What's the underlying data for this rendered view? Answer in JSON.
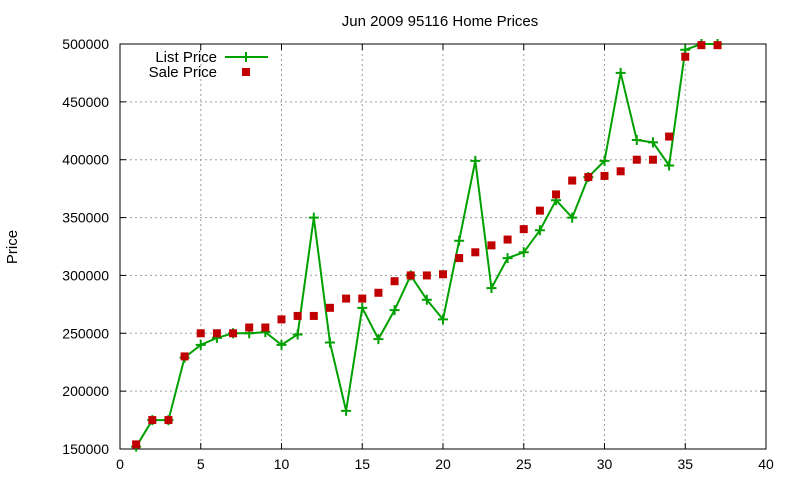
{
  "chart_data": {
    "type": "line",
    "title": "Jun 2009 95116 Home Prices",
    "xlabel": "",
    "ylabel": "Price",
    "xlim": [
      0,
      40
    ],
    "ylim": [
      150000,
      500000
    ],
    "xticks": [
      0,
      5,
      10,
      15,
      20,
      25,
      30,
      35,
      40
    ],
    "yticks": [
      150000,
      200000,
      250000,
      300000,
      350000,
      400000,
      450000,
      500000
    ],
    "grid": true,
    "legend_position": "top-left",
    "series": [
      {
        "name": "List Price",
        "style": "line-plus",
        "color": "#00a000",
        "x": [
          1,
          2,
          3,
          4,
          5,
          6,
          7,
          8,
          9,
          10,
          11,
          12,
          13,
          14,
          15,
          16,
          17,
          18,
          19,
          20,
          21,
          22,
          23,
          24,
          25,
          26,
          27,
          28,
          29,
          30,
          31,
          32,
          33,
          34,
          35,
          36,
          37
        ],
        "y": [
          152000,
          175000,
          175000,
          229000,
          240000,
          246000,
          250000,
          250000,
          251000,
          240000,
          249000,
          350000,
          242000,
          183000,
          272000,
          245000,
          270000,
          300000,
          279000,
          262000,
          330000,
          399000,
          289000,
          315000,
          320000,
          339000,
          365000,
          350000,
          385000,
          399000,
          475000,
          417000,
          415000,
          395000,
          495000,
          500000,
          500000
        ]
      },
      {
        "name": "Sale Price",
        "style": "square",
        "color": "#c00000",
        "x": [
          1,
          2,
          3,
          4,
          5,
          6,
          7,
          8,
          9,
          10,
          11,
          12,
          13,
          14,
          15,
          16,
          17,
          18,
          19,
          20,
          21,
          22,
          23,
          24,
          25,
          26,
          27,
          28,
          29,
          30,
          31,
          32,
          33,
          34,
          35,
          36,
          37
        ],
        "y": [
          154000,
          175000,
          175000,
          230000,
          250000,
          250000,
          250000,
          255000,
          255000,
          262000,
          265000,
          265000,
          272000,
          280000,
          280000,
          285000,
          295000,
          300000,
          300000,
          301000,
          315000,
          320000,
          326000,
          331000,
          340000,
          356000,
          370000,
          382000,
          385000,
          386000,
          390000,
          400000,
          400000,
          420000,
          489000,
          499000,
          499000
        ]
      }
    ]
  }
}
